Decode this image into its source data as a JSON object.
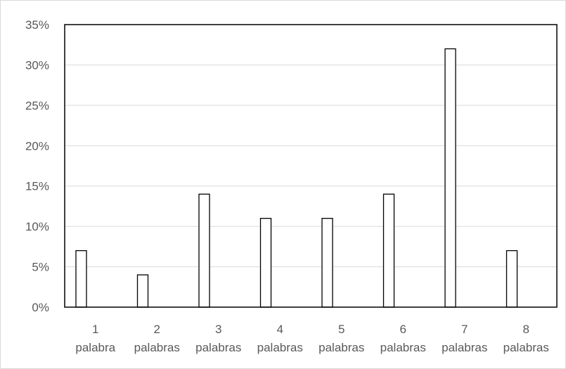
{
  "chart_data": {
    "type": "bar",
    "categories": [
      [
        "1",
        "palabra"
      ],
      [
        "2",
        "palabras"
      ],
      [
        "3",
        "palabras"
      ],
      [
        "4",
        "palabras"
      ],
      [
        "5",
        "palabras"
      ],
      [
        "6",
        "palabras"
      ],
      [
        "7",
        "palabras"
      ],
      [
        "8",
        "palabras"
      ]
    ],
    "values": [
      7,
      4,
      14,
      11,
      11,
      14,
      32,
      7
    ],
    "y_ticks": [
      "0%",
      "5%",
      "10%",
      "15%",
      "20%",
      "25%",
      "30%",
      "35%"
    ],
    "ylim": [
      0,
      35
    ],
    "grid": true,
    "legend": "none",
    "colors": {
      "bar_fill": "#ffffff",
      "bar_stroke": "#000000",
      "grid": "#d9d9d9",
      "axis_text": "#595959"
    }
  }
}
